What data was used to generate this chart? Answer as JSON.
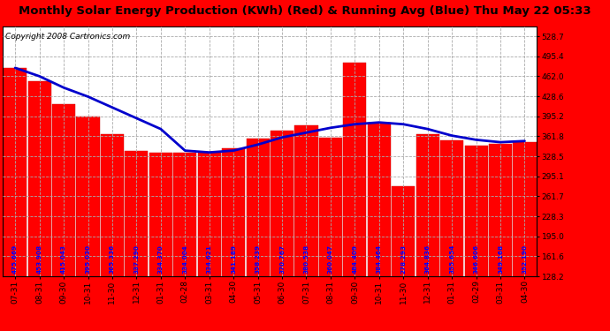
{
  "title": "Monthly Solar Energy Production (KWh) (Red) & Running Avg (Blue) Thu May 22 05:33",
  "copyright": "Copyright 2008 Cartronics.com",
  "categories": [
    "07-31",
    "08-31",
    "09-30",
    "10-31",
    "11-30",
    "12-31",
    "01-31",
    "02-28",
    "03-31",
    "04-30",
    "05-31",
    "06-30",
    "07-31",
    "08-31",
    "09-30",
    "10-31",
    "11-30",
    "12-31",
    "01-31",
    "02-29",
    "03-31",
    "04-30"
  ],
  "bar_values": [
    475.669,
    453.908,
    415.043,
    395.03,
    365.336,
    337.29,
    334.37,
    334.004,
    334.621,
    341.189,
    358.239,
    370.767,
    380.538,
    360.047,
    484.409,
    384.464,
    278.293,
    364.836,
    355.654,
    346.606,
    349.168,
    352.19
  ],
  "running_avg": [
    476.0,
    462.0,
    443.0,
    428.0,
    410.0,
    392.0,
    374.0,
    338.0,
    335.0,
    338.0,
    348.0,
    360.0,
    368.0,
    376.0,
    382.0,
    385.0,
    382.0,
    374.0,
    363.0,
    356.0,
    352.0,
    354.0
  ],
  "bar_color": "#ff0000",
  "line_color": "#0000cc",
  "outer_bg": "#ff0000",
  "plot_bg": "#ffffff",
  "grid_color": "#aaaaaa",
  "val_text_color": "#0000ff",
  "ylim_min": 128.2,
  "ylim_max": 545.0,
  "ytick_vals": [
    128.2,
    161.6,
    195.0,
    228.3,
    261.7,
    295.1,
    328.5,
    361.8,
    395.2,
    428.6,
    462.0,
    495.4,
    528.7
  ],
  "title_fontsize": 9.5,
  "copy_fontsize": 6.5,
  "val_fontsize": 5.2,
  "tick_fontsize": 6.5
}
